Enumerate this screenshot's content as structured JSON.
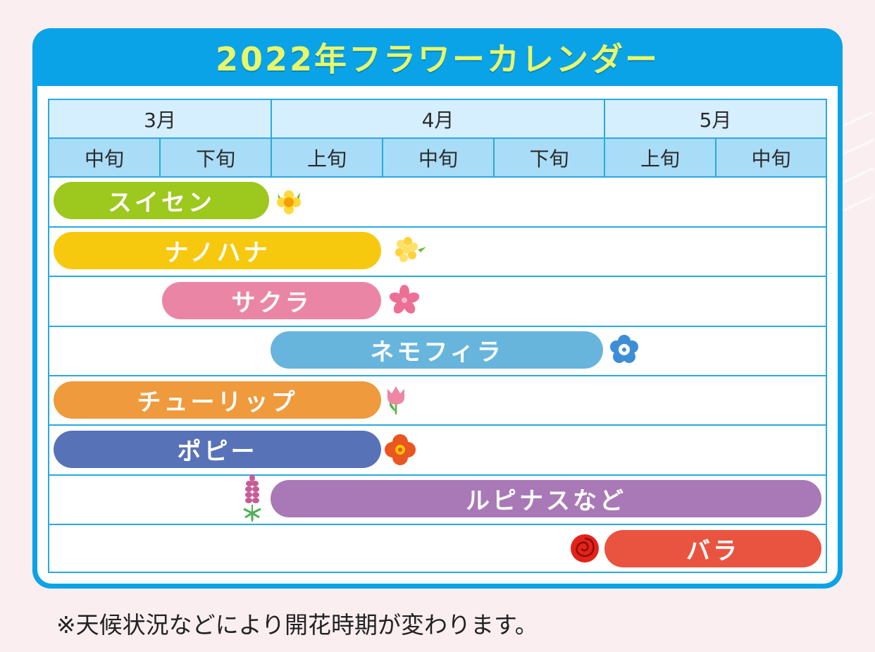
{
  "title": "2022年フラワーカレンダー",
  "months": [
    "3月",
    "4月",
    "5月"
  ],
  "periods": [
    "中旬",
    "下旬",
    "上旬",
    "中旬",
    "下旬",
    "上旬",
    "中旬"
  ],
  "flowers": [
    {
      "name": "スイセン",
      "color": "#9dc81d",
      "icon": "daffodil-icon"
    },
    {
      "name": "ナノハナ",
      "color": "#f6c90e",
      "icon": "rapeseed-blossom-icon"
    },
    {
      "name": "サクラ",
      "color": "#eb85a6",
      "icon": "cherry-blossom-icon"
    },
    {
      "name": "ネモフィラ",
      "color": "#67b5dd",
      "icon": "nemophila-icon"
    },
    {
      "name": "チューリップ",
      "color": "#ef9a3c",
      "icon": "tulip-icon"
    },
    {
      "name": "ポピー",
      "color": "#5872b8",
      "icon": "poppy-icon"
    },
    {
      "name": "ルピナスなど",
      "color": "#a879b6",
      "icon": "lupine-icon"
    },
    {
      "name": "バラ",
      "color": "#e95440",
      "icon": "rose-icon"
    }
  ],
  "note": "※天候状況などにより開花時期が変わります。"
}
